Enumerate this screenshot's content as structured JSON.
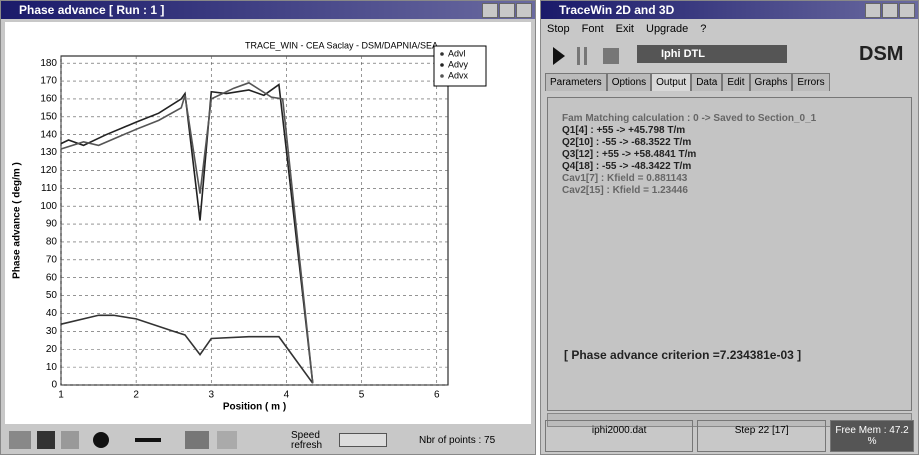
{
  "left_window": {
    "title": "Phase advance  [ Run : 1 ]",
    "speed_label": "Speed refresh",
    "points_label": "Nbr of points : 75"
  },
  "chart_data": {
    "type": "line",
    "title": "TRACE_WIN - CEA Saclay - DSM/DAPNIA/SEA",
    "xlabel": "Position ( m )",
    "ylabel": "Phase advance ( deg/m )",
    "xlim": [
      1,
      6.15
    ],
    "ylim": [
      0,
      184
    ],
    "xticks": [
      1,
      2,
      3,
      4,
      5,
      6
    ],
    "yticks": [
      0,
      10,
      20,
      30,
      40,
      50,
      60,
      70,
      80,
      90,
      100,
      110,
      120,
      130,
      140,
      150,
      160,
      170,
      180
    ],
    "grid": true,
    "legend": "upper right",
    "series": [
      {
        "name": "Advl",
        "color": "#333333",
        "x": [
          1,
          1.5,
          1.7,
          2,
          2.5,
          2.65,
          2.85,
          3,
          3.5,
          3.9,
          4.35
        ],
        "values": [
          34,
          39,
          39,
          37,
          30,
          28,
          17,
          26,
          27,
          27,
          1
        ]
      },
      {
        "name": "Advy",
        "color": "#222222",
        "x": [
          1,
          1.1,
          1.3,
          1.6,
          2,
          2.3,
          2.6,
          2.65,
          2.85,
          3,
          3.2,
          3.5,
          3.7,
          3.9,
          4.35
        ],
        "values": [
          135,
          137,
          134,
          140,
          147,
          152,
          160,
          163,
          92,
          164,
          163,
          165,
          162,
          168,
          1
        ]
      },
      {
        "name": "Advx",
        "color": "#555555",
        "x": [
          1,
          1.3,
          1.5,
          2,
          2.3,
          2.6,
          2.65,
          2.85,
          3,
          3.3,
          3.5,
          3.8,
          3.95,
          4.35
        ],
        "values": [
          132,
          136,
          134,
          143,
          148,
          155,
          162,
          107,
          160,
          166,
          169,
          161,
          160,
          1
        ]
      }
    ]
  },
  "right_window": {
    "title": "TraceWin 2D and 3D",
    "menu": [
      "Stop",
      "Font",
      "Exit",
      "Upgrade",
      "?"
    ],
    "dropdown": "Iphi DTL",
    "logo": "DSM",
    "tabs": [
      "Parameters",
      "Options",
      "Output",
      "Data",
      "Edit",
      "Graphs",
      "Errors"
    ],
    "output": [
      "Fam Matching calculation : 0  -> Saved to Section_0_1",
      "Q1[4] : +55 -> +45.798 T/m",
      "Q2[10] : -55 -> -68.3522 T/m",
      "Q3[12] : +55 -> +58.4841 T/m",
      "Q4[18] : -55 -> -48.3422 T/m",
      "Cav1[7] : Kfield = 0.881143",
      "Cav2[15] : Kfield = 1.23446"
    ],
    "criterion": "[ Phase advance criterion  =7.234381e-03 ]",
    "status": [
      "iphi2000.dat",
      "Step 22 [17]",
      "Free Mem : 47.2 %"
    ]
  }
}
